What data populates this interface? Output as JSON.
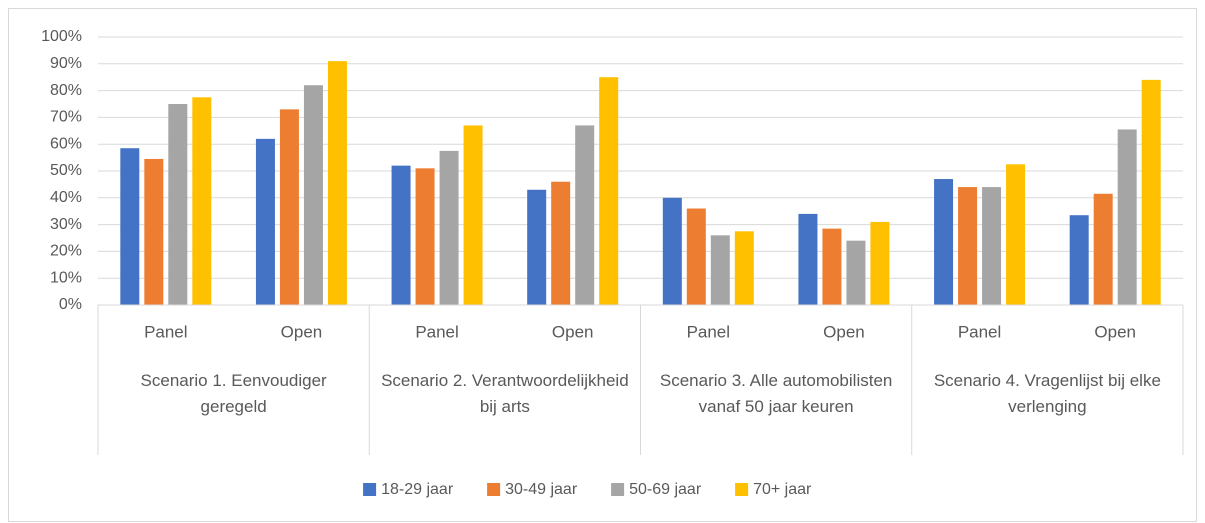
{
  "chart_data": {
    "type": "bar",
    "categories": [
      "Panel",
      "Open",
      "Panel",
      "Open",
      "Panel",
      "Open",
      "Panel",
      "Open"
    ],
    "groups": [
      "Scenario 1. Eenvoudiger geregeld",
      "Scenario 2. Verantwoordelijkheid bij arts",
      "Scenario 3. Alle automobilisten vanaf 50 jaar keuren",
      "Scenario 4. Vragenlijst bij elke verlenging"
    ],
    "series": [
      {
        "name": "18-29 jaar",
        "color": "#4472c4",
        "values": [
          58.5,
          62,
          52,
          43,
          40,
          34,
          47,
          33.5
        ]
      },
      {
        "name": "30-49 jaar",
        "color": "#ed7d31",
        "values": [
          54.5,
          73,
          51,
          46,
          36,
          28.5,
          44,
          41.5
        ]
      },
      {
        "name": "50-69 jaar",
        "color": "#a5a5a5",
        "values": [
          75,
          82,
          57.5,
          67,
          26,
          24,
          44,
          65.5
        ]
      },
      {
        "name": "70+ jaar",
        "color": "#ffc000",
        "values": [
          77.5,
          91,
          67,
          85,
          27.5,
          31,
          52.5,
          84
        ]
      }
    ],
    "ylim": [
      0,
      100
    ],
    "yticks": [
      {
        "value": 0,
        "label": "0%"
      },
      {
        "value": 10,
        "label": "10%"
      },
      {
        "value": 20,
        "label": "20%"
      },
      {
        "value": 30,
        "label": "30%"
      },
      {
        "value": 40,
        "label": "40%"
      },
      {
        "value": 50,
        "label": "50%"
      },
      {
        "value": 60,
        "label": "60%"
      },
      {
        "value": 70,
        "label": "70%"
      },
      {
        "value": 80,
        "label": "80%"
      },
      {
        "value": 90,
        "label": "90%"
      },
      {
        "value": 100,
        "label": "100%"
      }
    ],
    "grid": true,
    "legend": "bottom"
  }
}
